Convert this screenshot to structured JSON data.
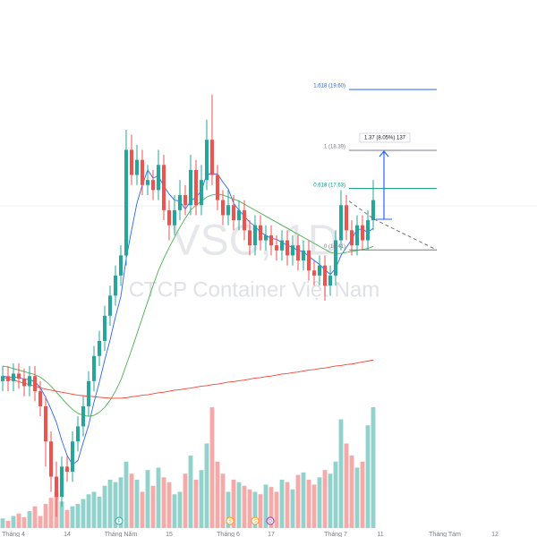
{
  "chart_data": {
    "type": "candlestick",
    "watermark_symbol": "VSC, 1D",
    "watermark_name": "CTCP Container Việt Nam",
    "categories": [
      null,
      null,
      "Tháng 4",
      null,
      null,
      null,
      null,
      null,
      null,
      null,
      null,
      null,
      "14",
      null,
      null,
      null,
      null,
      null,
      null,
      null,
      null,
      null,
      "Tháng Năm",
      null,
      null,
      null,
      null,
      null,
      null,
      null,
      null,
      "15",
      null,
      null,
      null,
      null,
      null,
      null,
      null,
      null,
      null,
      null,
      "Tháng 6",
      null,
      null,
      null,
      null,
      null,
      null,
      null,
      "17",
      null,
      null,
      null,
      null,
      null,
      null,
      null,
      null,
      null,
      null,
      null,
      "Tháng 7",
      null,
      null,
      null,
      null,
      null,
      null,
      null
    ],
    "future_labels": [
      "11",
      "Tháng Tám",
      "12"
    ],
    "open": [
      13.8,
      13.9,
      13.8,
      13.95,
      13.85,
      13.7,
      13.9,
      13.6,
      13.3,
      12.6,
      11.9,
      11.5,
      12.1,
      12.0,
      12.6,
      12.9,
      13.3,
      13.8,
      14.3,
      14.6,
      15.1,
      15.5,
      15.9,
      16.3,
      18.4,
      17.9,
      18.2,
      17.7,
      17.8,
      17.6,
      18.1,
      17.2,
      16.9,
      17.2,
      17.5,
      17.3,
      18.0,
      17.3,
      17.8,
      18.6,
      17.9,
      17.4,
      17.1,
      17.3,
      17.0,
      17.2,
      16.8,
      16.5,
      16.9,
      16.6,
      16.7,
      16.5,
      16.4,
      16.6,
      16.3,
      16.5,
      16.2,
      16.4,
      16.0,
      15.9,
      16.1,
      15.7,
      15.9,
      16.6,
      17.3,
      16.8,
      16.5,
      16.9,
      16.6,
      17.0
    ],
    "high": [
      14.1,
      14.1,
      14.15,
      14.15,
      14.05,
      14.1,
      14.1,
      13.8,
      13.5,
      12.8,
      12.2,
      12.3,
      12.3,
      12.8,
      13.1,
      13.5,
      14.0,
      14.5,
      14.8,
      15.3,
      15.7,
      16.1,
      16.5,
      18.8,
      18.7,
      18.5,
      18.4,
      18.1,
      18.0,
      18.4,
      18.3,
      17.4,
      17.5,
      17.8,
      17.7,
      18.3,
      18.2,
      18.1,
      19.0,
      19.5,
      18.1,
      17.6,
      17.6,
      17.5,
      17.4,
      17.4,
      17.0,
      17.1,
      17.1,
      16.9,
      16.9,
      16.7,
      16.8,
      16.8,
      16.7,
      16.7,
      16.6,
      16.6,
      16.2,
      16.3,
      16.3,
      16.1,
      16.8,
      17.6,
      17.5,
      17.0,
      17.1,
      17.1,
      17.2,
      17.8
    ],
    "low": [
      13.6,
      13.6,
      13.6,
      13.65,
      13.5,
      13.5,
      13.4,
      13.1,
      12.1,
      11.6,
      11.1,
      11.3,
      11.8,
      11.8,
      12.4,
      12.7,
      13.1,
      13.6,
      14.1,
      14.4,
      14.9,
      15.3,
      15.7,
      16.1,
      17.7,
      17.7,
      17.5,
      17.5,
      17.4,
      17.4,
      17.0,
      16.6,
      16.7,
      17.0,
      17.1,
      17.1,
      17.1,
      17.1,
      17.6,
      17.7,
      17.2,
      16.9,
      16.9,
      16.8,
      16.8,
      16.6,
      16.3,
      16.3,
      16.4,
      16.4,
      16.3,
      16.2,
      16.2,
      16.1,
      16.1,
      16.0,
      16.0,
      15.8,
      15.7,
      15.7,
      15.4,
      15.5,
      15.7,
      16.4,
      16.6,
      16.3,
      16.3,
      16.4,
      16.4,
      16.8
    ],
    "close": [
      13.9,
      13.8,
      13.95,
      13.85,
      13.7,
      13.9,
      13.6,
      13.3,
      12.6,
      11.9,
      11.5,
      12.1,
      12.0,
      12.6,
      12.9,
      13.3,
      13.8,
      14.3,
      14.6,
      15.1,
      15.5,
      15.9,
      16.3,
      18.4,
      17.9,
      18.2,
      17.7,
      17.8,
      17.6,
      18.1,
      17.2,
      16.9,
      17.2,
      17.5,
      17.3,
      18.0,
      17.3,
      17.8,
      18.6,
      17.9,
      17.4,
      17.1,
      17.3,
      17.0,
      17.2,
      16.8,
      16.5,
      16.9,
      16.6,
      16.7,
      16.5,
      16.4,
      16.6,
      16.3,
      16.5,
      16.2,
      16.4,
      16.0,
      15.9,
      16.1,
      15.7,
      15.9,
      16.6,
      17.3,
      16.8,
      16.5,
      16.9,
      16.6,
      17.0,
      17.4
    ],
    "volume": [
      8,
      6,
      10,
      12,
      9,
      14,
      18,
      10,
      20,
      25,
      30,
      22,
      15,
      18,
      20,
      24,
      28,
      30,
      26,
      35,
      40,
      38,
      42,
      55,
      45,
      40,
      30,
      48,
      35,
      50,
      42,
      38,
      28,
      30,
      45,
      60,
      40,
      48,
      70,
      100,
      55,
      45,
      30,
      40,
      38,
      35,
      32,
      30,
      28,
      36,
      34,
      30,
      40,
      38,
      32,
      44,
      46,
      40,
      36,
      42,
      48,
      45,
      55,
      90,
      70,
      60,
      50,
      55,
      85,
      100
    ],
    "up_color": "#26a69a",
    "down_color": "#ef5350",
    "ylim": [
      10.7,
      21.38
    ],
    "volume_ylim": [
      0,
      100
    ],
    "moving_averages": [
      {
        "color": "#2962ff",
        "values": [
          13.9,
          13.88,
          13.88,
          13.87,
          13.84,
          13.83,
          13.79,
          13.67,
          13.48,
          13.24,
          12.98,
          12.62,
          12.32,
          12.14,
          12.22,
          12.58,
          12.92,
          13.38,
          13.78,
          14.22,
          14.62,
          15.08,
          15.48,
          16.24,
          16.8,
          17.34,
          17.7,
          18.0,
          17.84,
          17.88,
          17.68,
          17.52,
          17.4,
          17.38,
          17.22,
          17.38,
          17.46,
          17.58,
          17.92,
          17.92,
          17.92,
          17.76,
          17.62,
          17.34,
          17.2,
          17.08,
          16.96,
          16.88,
          16.76,
          16.7,
          16.64,
          16.62,
          16.56,
          16.5,
          16.46,
          16.4,
          16.38,
          16.28,
          16.2,
          16.12,
          16.02,
          15.92,
          16.04,
          16.3,
          16.46,
          16.62,
          16.82,
          16.82,
          16.76,
          16.84
        ]
      },
      {
        "color": "#4caf50",
        "values": [
          14.1,
          14.08,
          14.05,
          14.02,
          13.99,
          13.96,
          13.93,
          13.88,
          13.8,
          13.7,
          13.58,
          13.46,
          13.34,
          13.24,
          13.16,
          13.12,
          13.1,
          13.12,
          13.18,
          13.28,
          13.42,
          13.6,
          13.82,
          14.12,
          14.42,
          14.74,
          15.06,
          15.38,
          15.7,
          16.0,
          16.24,
          16.46,
          16.66,
          16.86,
          17.04,
          17.2,
          17.3,
          17.38,
          17.46,
          17.5,
          17.52,
          17.5,
          17.46,
          17.42,
          17.38,
          17.32,
          17.26,
          17.2,
          17.14,
          17.08,
          17.02,
          16.96,
          16.9,
          16.84,
          16.78,
          16.72,
          16.66,
          16.6,
          16.54,
          16.48,
          16.42,
          16.36,
          16.34,
          16.34,
          16.36,
          16.38,
          16.4,
          16.42,
          16.44,
          16.48
        ]
      },
      {
        "color": "#f44336",
        "values": [
          13.88,
          13.85,
          13.82,
          13.79,
          13.76,
          13.73,
          13.7,
          13.67,
          13.64,
          13.62,
          13.6,
          13.58,
          13.56,
          13.54,
          13.52,
          13.51,
          13.5,
          13.49,
          13.48,
          13.47,
          13.46,
          13.46,
          13.46,
          13.47,
          13.49,
          13.5,
          13.52,
          13.53,
          13.55,
          13.57,
          13.58,
          13.6,
          13.62,
          13.63,
          13.65,
          13.66,
          13.68,
          13.7,
          13.71,
          13.73,
          13.74,
          13.76,
          13.78,
          13.79,
          13.81,
          13.82,
          13.84,
          13.86,
          13.87,
          13.89,
          13.9,
          13.92,
          13.94,
          13.95,
          13.97,
          13.98,
          14.0,
          14.02,
          14.03,
          14.05,
          14.06,
          14.08,
          14.1,
          14.11,
          14.13,
          14.14,
          14.16,
          14.18,
          14.2,
          14.22
        ]
      }
    ],
    "fib_levels": [
      {
        "label": "1.618 (19.60)",
        "value": 19.6,
        "color": "#2962ff"
      },
      {
        "label": "1 (18.39)",
        "value": 18.39,
        "color": "#787b86"
      },
      {
        "label": "0.618 (17.63)",
        "value": 17.63,
        "color": "#089981"
      },
      {
        "label": "0 (16.41)",
        "value": 16.41,
        "color": "#787b86"
      }
    ],
    "measure": {
      "label": "1.37 (8.05%) 137",
      "from": 17.02,
      "to": 18.39,
      "color": "#2962ff"
    },
    "events": [
      {
        "label": "F",
        "color": "#26a69a"
      },
      {
        "label": "S",
        "color": "#ff9800"
      },
      {
        "label": "S",
        "color": "#ff9800"
      },
      {
        "label": "D",
        "color": "#9c27b0"
      }
    ]
  }
}
